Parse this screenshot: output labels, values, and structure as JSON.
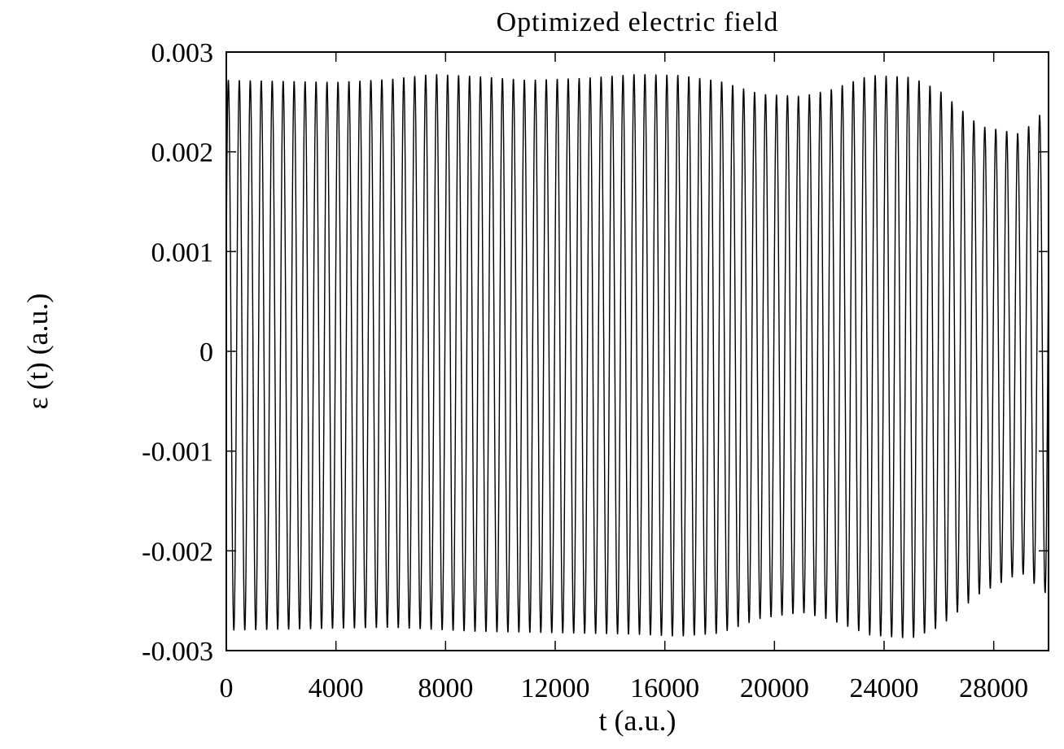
{
  "chart_data": {
    "type": "line",
    "title": "Optimized electric field",
    "xlabel": "t (a.u.)",
    "ylabel": "ε (t) (a.u.)",
    "xlim": [
      0,
      30000
    ],
    "ylim": [
      -0.003,
      0.003
    ],
    "x_ticks": [
      0,
      4000,
      8000,
      12000,
      16000,
      20000,
      24000,
      28000
    ],
    "x_tick_labels": [
      "0",
      "4000",
      "8000",
      "12000",
      "16000",
      "20000",
      "24000",
      "28000"
    ],
    "y_ticks": [
      0.003,
      0.002,
      0.001,
      0,
      -0.001,
      -0.002,
      -0.003
    ],
    "y_tick_labels": [
      "0.003",
      "0.002",
      "0.001",
      "0",
      "-0.001",
      "-0.002",
      "-0.003"
    ],
    "grid": false,
    "legend": "none",
    "line_color": "#000000",
    "series": [
      {
        "period": 400,
        "envelope": {
          "t": [
            0,
            2000,
            4000,
            6000,
            7500,
            9000,
            11000,
            13000,
            15000,
            16500,
            18000,
            19500,
            21000,
            22000,
            23500,
            25000,
            26000,
            27500,
            29000,
            30000
          ],
          "max": [
            0.00272,
            0.00271,
            0.0027,
            0.00273,
            0.00278,
            0.00276,
            0.00272,
            0.00274,
            0.00278,
            0.00277,
            0.00271,
            0.00258,
            0.00256,
            0.00262,
            0.00277,
            0.00275,
            0.00262,
            0.00226,
            0.00218,
            0.00246
          ],
          "min": [
            -0.0028,
            -0.00279,
            -0.00278,
            -0.00277,
            -0.00279,
            -0.00281,
            -0.00282,
            -0.00283,
            -0.00284,
            -0.00286,
            -0.00283,
            -0.00268,
            -0.00262,
            -0.00269,
            -0.00285,
            -0.00288,
            -0.00277,
            -0.00243,
            -0.00222,
            -0.00245
          ]
        }
      }
    ]
  }
}
